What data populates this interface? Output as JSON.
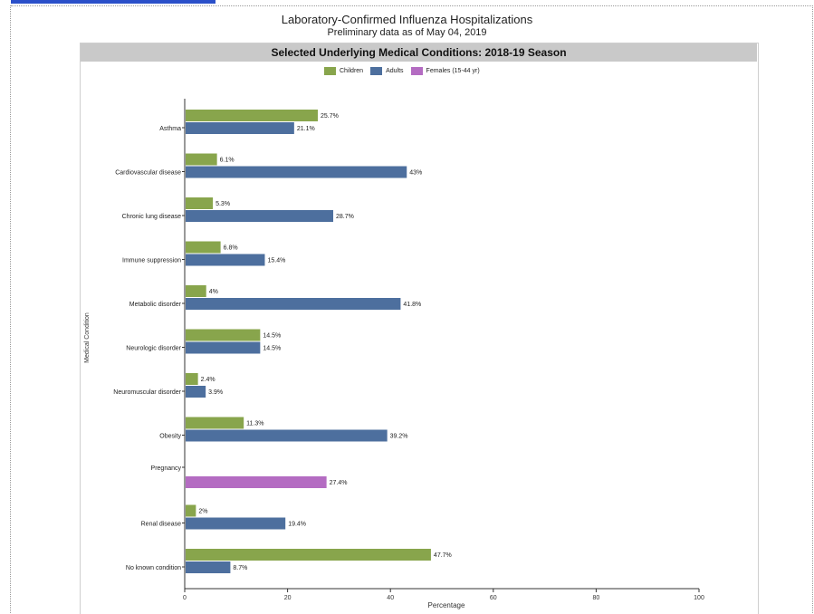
{
  "header": {
    "title": "Laboratory-Confirmed Influenza Hospitalizations",
    "subtitle": "Preliminary data as of May 04, 2019",
    "banner": "Selected Underlying Medical Conditions: 2018-19 Season"
  },
  "chart_data": {
    "type": "bar",
    "orientation": "horizontal",
    "title": "Selected Underlying Medical Conditions: 2018-19 Season",
    "xlabel": "Percentage",
    "ylabel": "Medical Condition",
    "xlim": [
      0,
      100
    ],
    "xticks": [
      0,
      20,
      40,
      60,
      80,
      100
    ],
    "grid": false,
    "legend_position": "top-center",
    "categories": [
      "Asthma",
      "Cardiovascular disease",
      "Chronic lung disease",
      "Immune suppression",
      "Metabolic disorder",
      "Neurologic disorder",
      "Neuromuscular disorder",
      "Obesity",
      "Pregnancy",
      "Renal disease",
      "No known condition"
    ],
    "series": [
      {
        "name": "Children",
        "color": "#88a54c",
        "values": [
          25.7,
          6.1,
          5.3,
          6.8,
          4,
          14.5,
          2.4,
          11.3,
          null,
          2,
          47.7
        ],
        "labels": [
          "25.7%",
          "6.1%",
          "5.3%",
          "6.8%",
          "4%",
          "14.5%",
          "2.4%",
          "11.3%",
          null,
          "2%",
          "47.7%"
        ]
      },
      {
        "name": "Adults",
        "color": "#4d6f9e",
        "values": [
          21.1,
          43,
          28.7,
          15.4,
          41.8,
          14.5,
          3.9,
          39.2,
          null,
          19.4,
          8.7
        ],
        "labels": [
          "21.1%",
          "43%",
          "28.7%",
          "15.4%",
          "41.8%",
          "14.5%",
          "3.9%",
          "39.2%",
          null,
          "19.4%",
          "8.7%"
        ]
      },
      {
        "name": "Females (15-44 yr)",
        "color": "#b46cc2",
        "values": [
          null,
          null,
          null,
          null,
          null,
          null,
          null,
          null,
          27.4,
          null,
          null
        ],
        "labels": [
          null,
          null,
          null,
          null,
          null,
          null,
          null,
          null,
          "27.4%",
          null,
          null
        ]
      }
    ]
  }
}
